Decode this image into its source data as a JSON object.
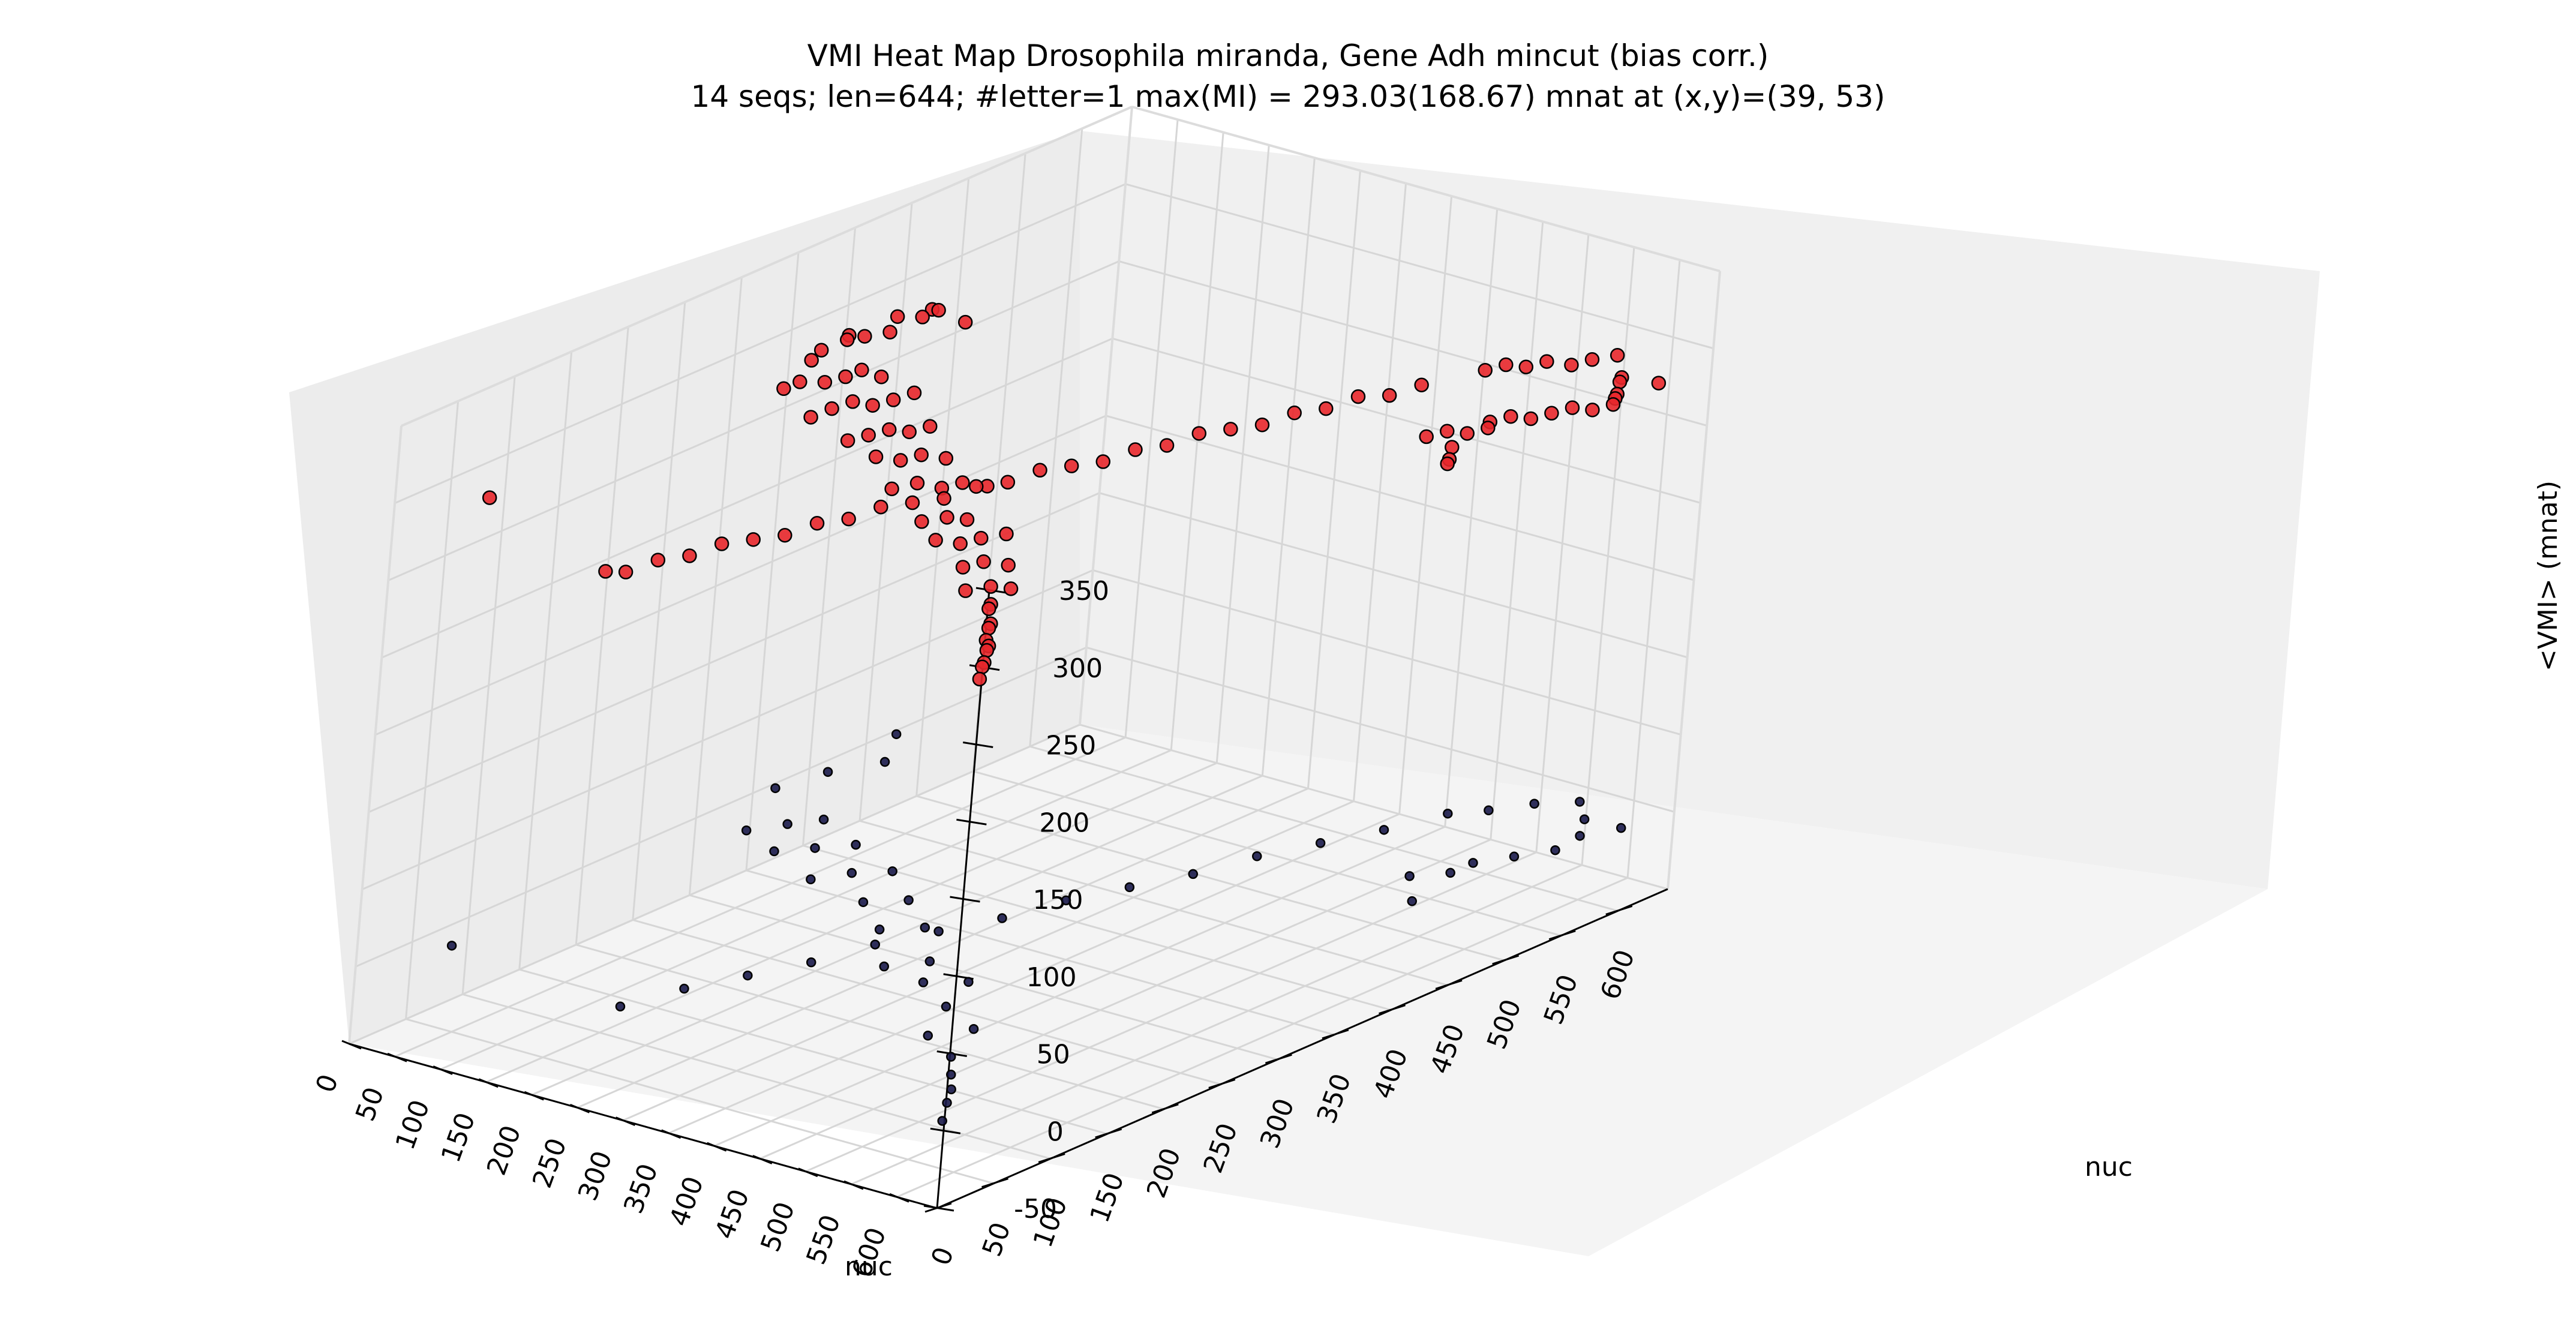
{
  "chart_data": {
    "type": "scatter3d",
    "title": "VMI Heat Map Drosophila miranda, Gene Adh mincut (bias corr.)",
    "subtitle": "14 seqs; len=644; #letter=1 max(MI) = 293.03(168.67) mnat at (x,y)=(39, 53)",
    "xlabel": "nuc",
    "ylabel": "nuc",
    "zlabel": "<VMI> (mnat)",
    "xlim": [
      0,
      644
    ],
    "ylim": [
      0,
      644
    ],
    "zlim": [
      -50,
      350
    ],
    "x_ticks": [
      "0",
      "50",
      "100",
      "150",
      "200",
      "250",
      "300",
      "350",
      "400",
      "450",
      "500",
      "550",
      "600"
    ],
    "y_ticks": [
      "0",
      "50",
      "100",
      "150",
      "200",
      "250",
      "300",
      "350",
      "400",
      "450",
      "500",
      "550",
      "600"
    ],
    "z_ticks": [
      "-50",
      "0",
      "50",
      "100",
      "150",
      "200",
      "250",
      "300",
      "350"
    ],
    "grid": true,
    "colors": {
      "high_point": "#e8272b",
      "low_point": "#1a1a4a",
      "pane_left": "#ececec",
      "pane_back": "#f0f0f0",
      "pane_floor": "#f4f4f4",
      "grid": "#d6d6d6"
    },
    "series": [
      {
        "points": [
          [
            8,
            470,
            276
          ],
          [
            10,
            370,
            282
          ],
          [
            12,
            360,
            279
          ],
          [
            15,
            390,
            286
          ],
          [
            20,
            400,
            283
          ],
          [
            25,
            380,
            288
          ],
          [
            30,
            420,
            291
          ],
          [
            35,
            410,
            285
          ],
          [
            39,
            53,
            293
          ],
          [
            45,
            430,
            290
          ],
          [
            50,
            440,
            292
          ],
          [
            55,
            300,
            287
          ],
          [
            60,
            310,
            289
          ],
          [
            68,
            450,
            284
          ],
          [
            75,
            320,
            288
          ],
          [
            85,
            330,
            290
          ],
          [
            90,
            340,
            292
          ],
          [
            100,
            350,
            286
          ],
          [
            110,
            280,
            284
          ],
          [
            120,
            290,
            288
          ],
          [
            130,
            300,
            291
          ],
          [
            140,
            310,
            287
          ],
          [
            150,
            320,
            289
          ],
          [
            160,
            330,
            292
          ],
          [
            175,
            260,
            286
          ],
          [
            185,
            270,
            288
          ],
          [
            195,
            280,
            290
          ],
          [
            205,
            290,
            287
          ],
          [
            215,
            300,
            289
          ],
          [
            230,
            240,
            291
          ],
          [
            245,
            250,
            288
          ],
          [
            255,
            260,
            290
          ],
          [
            270,
            270,
            287
          ],
          [
            285,
            210,
            289
          ],
          [
            300,
            220,
            292
          ],
          [
            315,
            230,
            288
          ],
          [
            325,
            240,
            290
          ],
          [
            340,
            250,
            287
          ],
          [
            355,
            180,
            289
          ],
          [
            370,
            190,
            291
          ],
          [
            380,
            200,
            288
          ],
          [
            395,
            160,
            290
          ],
          [
            410,
            170,
            287
          ],
          [
            420,
            180,
            289
          ],
          [
            435,
            190,
            291
          ],
          [
            450,
            140,
            288
          ],
          [
            460,
            150,
            290
          ],
          [
            475,
            160,
            287
          ],
          [
            490,
            110,
            289
          ],
          [
            505,
            120,
            291
          ],
          [
            515,
            130,
            288
          ],
          [
            530,
            100,
            290
          ],
          [
            540,
            90,
            292
          ],
          [
            555,
            80,
            288
          ],
          [
            565,
            70,
            290
          ],
          [
            575,
            60,
            287
          ],
          [
            590,
            50,
            289
          ],
          [
            600,
            40,
            291
          ],
          [
            610,
            30,
            288
          ],
          [
            620,
            20,
            290
          ],
          [
            630,
            10,
            287
          ],
          [
            500,
            560,
            289
          ],
          [
            510,
            570,
            291
          ],
          [
            520,
            580,
            288
          ],
          [
            530,
            590,
            290
          ],
          [
            545,
            600,
            287
          ],
          [
            555,
            610,
            289
          ],
          [
            570,
            620,
            291
          ],
          [
            580,
            500,
            288
          ],
          [
            590,
            510,
            290
          ],
          [
            600,
            520,
            287
          ],
          [
            610,
            530,
            289
          ],
          [
            620,
            540,
            291
          ],
          [
            630,
            550,
            288
          ],
          [
            640,
            560,
            290
          ],
          [
            480,
            520,
            289
          ],
          [
            470,
            500,
            287
          ],
          [
            460,
            480,
            291
          ],
          [
            450,
            460,
            288
          ],
          [
            440,
            440,
            290
          ],
          [
            430,
            420,
            287
          ],
          [
            420,
            400,
            289
          ],
          [
            410,
            380,
            291
          ],
          [
            400,
            360,
            288
          ],
          [
            390,
            340,
            290
          ],
          [
            380,
            320,
            287
          ],
          [
            370,
            300,
            289
          ],
          [
            360,
            280,
            291
          ],
          [
            350,
            260,
            288
          ],
          [
            340,
            240,
            290
          ],
          [
            330,
            220,
            287
          ],
          [
            320,
            200,
            289
          ],
          [
            310,
            180,
            291
          ],
          [
            300,
            160,
            288
          ],
          [
            290,
            140,
            290
          ],
          [
            280,
            120,
            287
          ],
          [
            270,
            100,
            289
          ],
          [
            260,
            80,
            291
          ],
          [
            250,
            60,
            288
          ],
          [
            240,
            40,
            290
          ],
          [
            230,
            20,
            287
          ],
          [
            220,
            10,
            289
          ],
          [
            600,
            600,
            288
          ],
          [
            610,
            590,
            290
          ],
          [
            620,
            580,
            287
          ],
          [
            630,
            570,
            289
          ],
          [
            640,
            600,
            291
          ],
          [
            560,
            460,
            288
          ],
          [
            570,
            470,
            290
          ],
          [
            580,
            480,
            287
          ],
          [
            590,
            490,
            289
          ],
          [
            600,
            450,
            291
          ],
          [
            610,
            440,
            288
          ],
          [
            620,
            430,
            290
          ]
        ]
      },
      {
        "points": [
          [
            8,
            470,
            1
          ],
          [
            12,
            360,
            2
          ],
          [
            20,
            400,
            1
          ],
          [
            39,
            53,
            3
          ],
          [
            45,
            430,
            2
          ],
          [
            55,
            300,
            1
          ],
          [
            75,
            320,
            2
          ],
          [
            90,
            340,
            1
          ],
          [
            110,
            280,
            3
          ],
          [
            130,
            300,
            2
          ],
          [
            150,
            320,
            1
          ],
          [
            175,
            260,
            2
          ],
          [
            195,
            280,
            3
          ],
          [
            215,
            300,
            1
          ],
          [
            245,
            250,
            2
          ],
          [
            270,
            270,
            1
          ],
          [
            300,
            220,
            3
          ],
          [
            325,
            240,
            2
          ],
          [
            355,
            180,
            1
          ],
          [
            380,
            200,
            2
          ],
          [
            410,
            170,
            3
          ],
          [
            435,
            190,
            1
          ],
          [
            460,
            150,
            2
          ],
          [
            490,
            110,
            1
          ],
          [
            515,
            130,
            3
          ],
          [
            540,
            90,
            2
          ],
          [
            565,
            70,
            1
          ],
          [
            590,
            50,
            2
          ],
          [
            610,
            30,
            3
          ],
          [
            630,
            10,
            1
          ],
          [
            500,
            560,
            2
          ],
          [
            520,
            580,
            1
          ],
          [
            545,
            600,
            3
          ],
          [
            570,
            620,
            2
          ],
          [
            590,
            510,
            1
          ],
          [
            610,
            530,
            2
          ],
          [
            630,
            550,
            3
          ],
          [
            480,
            520,
            1
          ],
          [
            460,
            480,
            2
          ],
          [
            440,
            440,
            3
          ],
          [
            420,
            400,
            1
          ],
          [
            400,
            360,
            2
          ],
          [
            380,
            320,
            3
          ],
          [
            360,
            280,
            1
          ],
          [
            340,
            240,
            2
          ],
          [
            320,
            200,
            3
          ],
          [
            300,
            160,
            1
          ],
          [
            280,
            120,
            2
          ],
          [
            260,
            80,
            3
          ],
          [
            240,
            40,
            1
          ],
          [
            600,
            600,
            2
          ],
          [
            620,
            580,
            1
          ],
          [
            640,
            600,
            3
          ],
          [
            570,
            470,
            2
          ],
          [
            590,
            490,
            1
          ],
          [
            610,
            440,
            2
          ]
        ]
      }
    ]
  }
}
